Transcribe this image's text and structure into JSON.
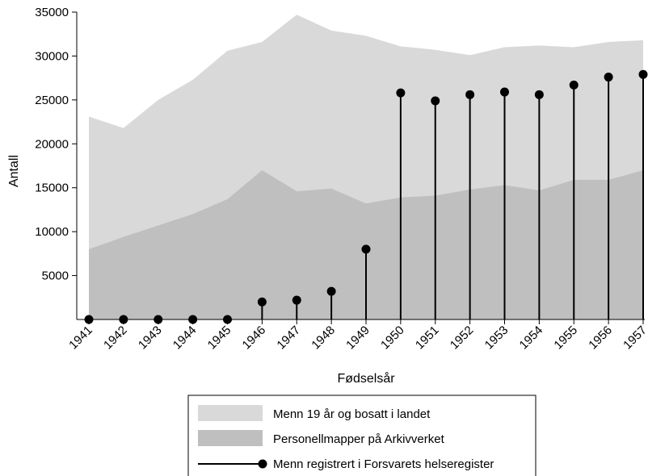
{
  "chart_data": {
    "type": "area",
    "xlabel": "Fødselsår",
    "ylabel": "Antall",
    "x": [
      1941,
      1942,
      1943,
      1944,
      1945,
      1946,
      1947,
      1948,
      1949,
      1950,
      1951,
      1952,
      1953,
      1954,
      1955,
      1956,
      1957
    ],
    "ylim": [
      0,
      35000
    ],
    "yticks": [
      5000,
      10000,
      15000,
      20000,
      25000,
      30000,
      35000
    ],
    "grid": false,
    "legend_placement": "bottom",
    "series": [
      {
        "name": "Menn 19 år og bosatt i landet",
        "type": "area",
        "color": "#d9d9d9",
        "values": [
          23100,
          21800,
          25000,
          27300,
          30600,
          31600,
          34700,
          32900,
          32300,
          31100,
          30700,
          30100,
          31000,
          31200,
          31000,
          31600,
          31800
        ]
      },
      {
        "name": "Personellmapper på Arkivverket",
        "type": "area",
        "color": "#bfbfbf",
        "values": [
          8000,
          9400,
          10700,
          12000,
          13700,
          17000,
          14600,
          14900,
          13200,
          13900,
          14100,
          14800,
          15300,
          14700,
          15900,
          15900,
          17000
        ]
      },
      {
        "name": "Menn registrert i Forsvarets helseregister",
        "type": "stem",
        "color": "#000000",
        "values": [
          0,
          0,
          0,
          0,
          0,
          2000,
          2200,
          3200,
          8000,
          25800,
          24900,
          25600,
          25900,
          25600,
          26700,
          27600,
          27900
        ]
      }
    ]
  }
}
